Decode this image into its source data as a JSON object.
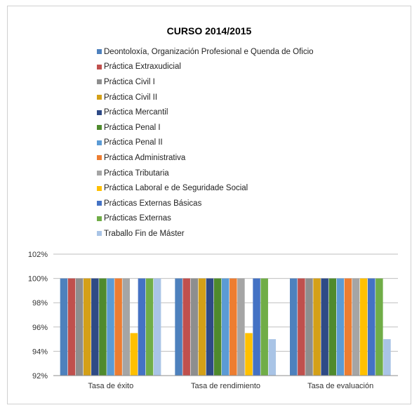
{
  "chart_data": {
    "type": "bar",
    "title": "CURSO 2014/2015",
    "categories": [
      "Tasa de éxito",
      "Tasa de rendimiento",
      "Tasa de evaluación"
    ],
    "ylim": [
      92,
      102
    ],
    "yticks": [
      92,
      94,
      96,
      98,
      100,
      102
    ],
    "ytick_labels": [
      "92%",
      "94%",
      "96%",
      "98%",
      "100%",
      "102%"
    ],
    "grid": true,
    "legend_position": "top",
    "series": [
      {
        "name": "Deontoloxía, Organización Profesional e Quenda de Oficio",
        "color": "#4e81bd",
        "values": [
          100,
          100,
          100
        ]
      },
      {
        "name": "Práctica Extraxudicial",
        "color": "#c0504d",
        "values": [
          100,
          100,
          100
        ]
      },
      {
        "name": "Práctica Civil I",
        "color": "#8e8e8e",
        "values": [
          100,
          100,
          100
        ]
      },
      {
        "name": "Práctica Civil II",
        "color": "#d4a017",
        "values": [
          100,
          100,
          100
        ]
      },
      {
        "name": "Práctica Mercantil",
        "color": "#2e4a86",
        "values": [
          100,
          100,
          100
        ]
      },
      {
        "name": "Práctica Penal I",
        "color": "#4f8a2d",
        "values": [
          100,
          100,
          100
        ]
      },
      {
        "name": "Práctica Penal II",
        "color": "#5b9bd5",
        "values": [
          100,
          100,
          100
        ]
      },
      {
        "name": "Práctica Administrativa",
        "color": "#ed7d31",
        "values": [
          100,
          100,
          100
        ]
      },
      {
        "name": "Práctica Tributaria",
        "color": "#a5a5a5",
        "values": [
          100,
          100,
          100
        ]
      },
      {
        "name": "Práctica Laboral e de Seguridade Social",
        "color": "#ffc000",
        "values": [
          95.5,
          95.5,
          100
        ]
      },
      {
        "name": "Prácticas Externas Básicas",
        "color": "#4472c4",
        "values": [
          100,
          100,
          100
        ]
      },
      {
        "name": "Prácticas Externas",
        "color": "#70ad47",
        "values": [
          100,
          100,
          100
        ]
      },
      {
        "name": "Traballo Fin de Máster",
        "color": "#a9c4e6",
        "values": [
          100,
          95,
          95
        ]
      }
    ]
  }
}
